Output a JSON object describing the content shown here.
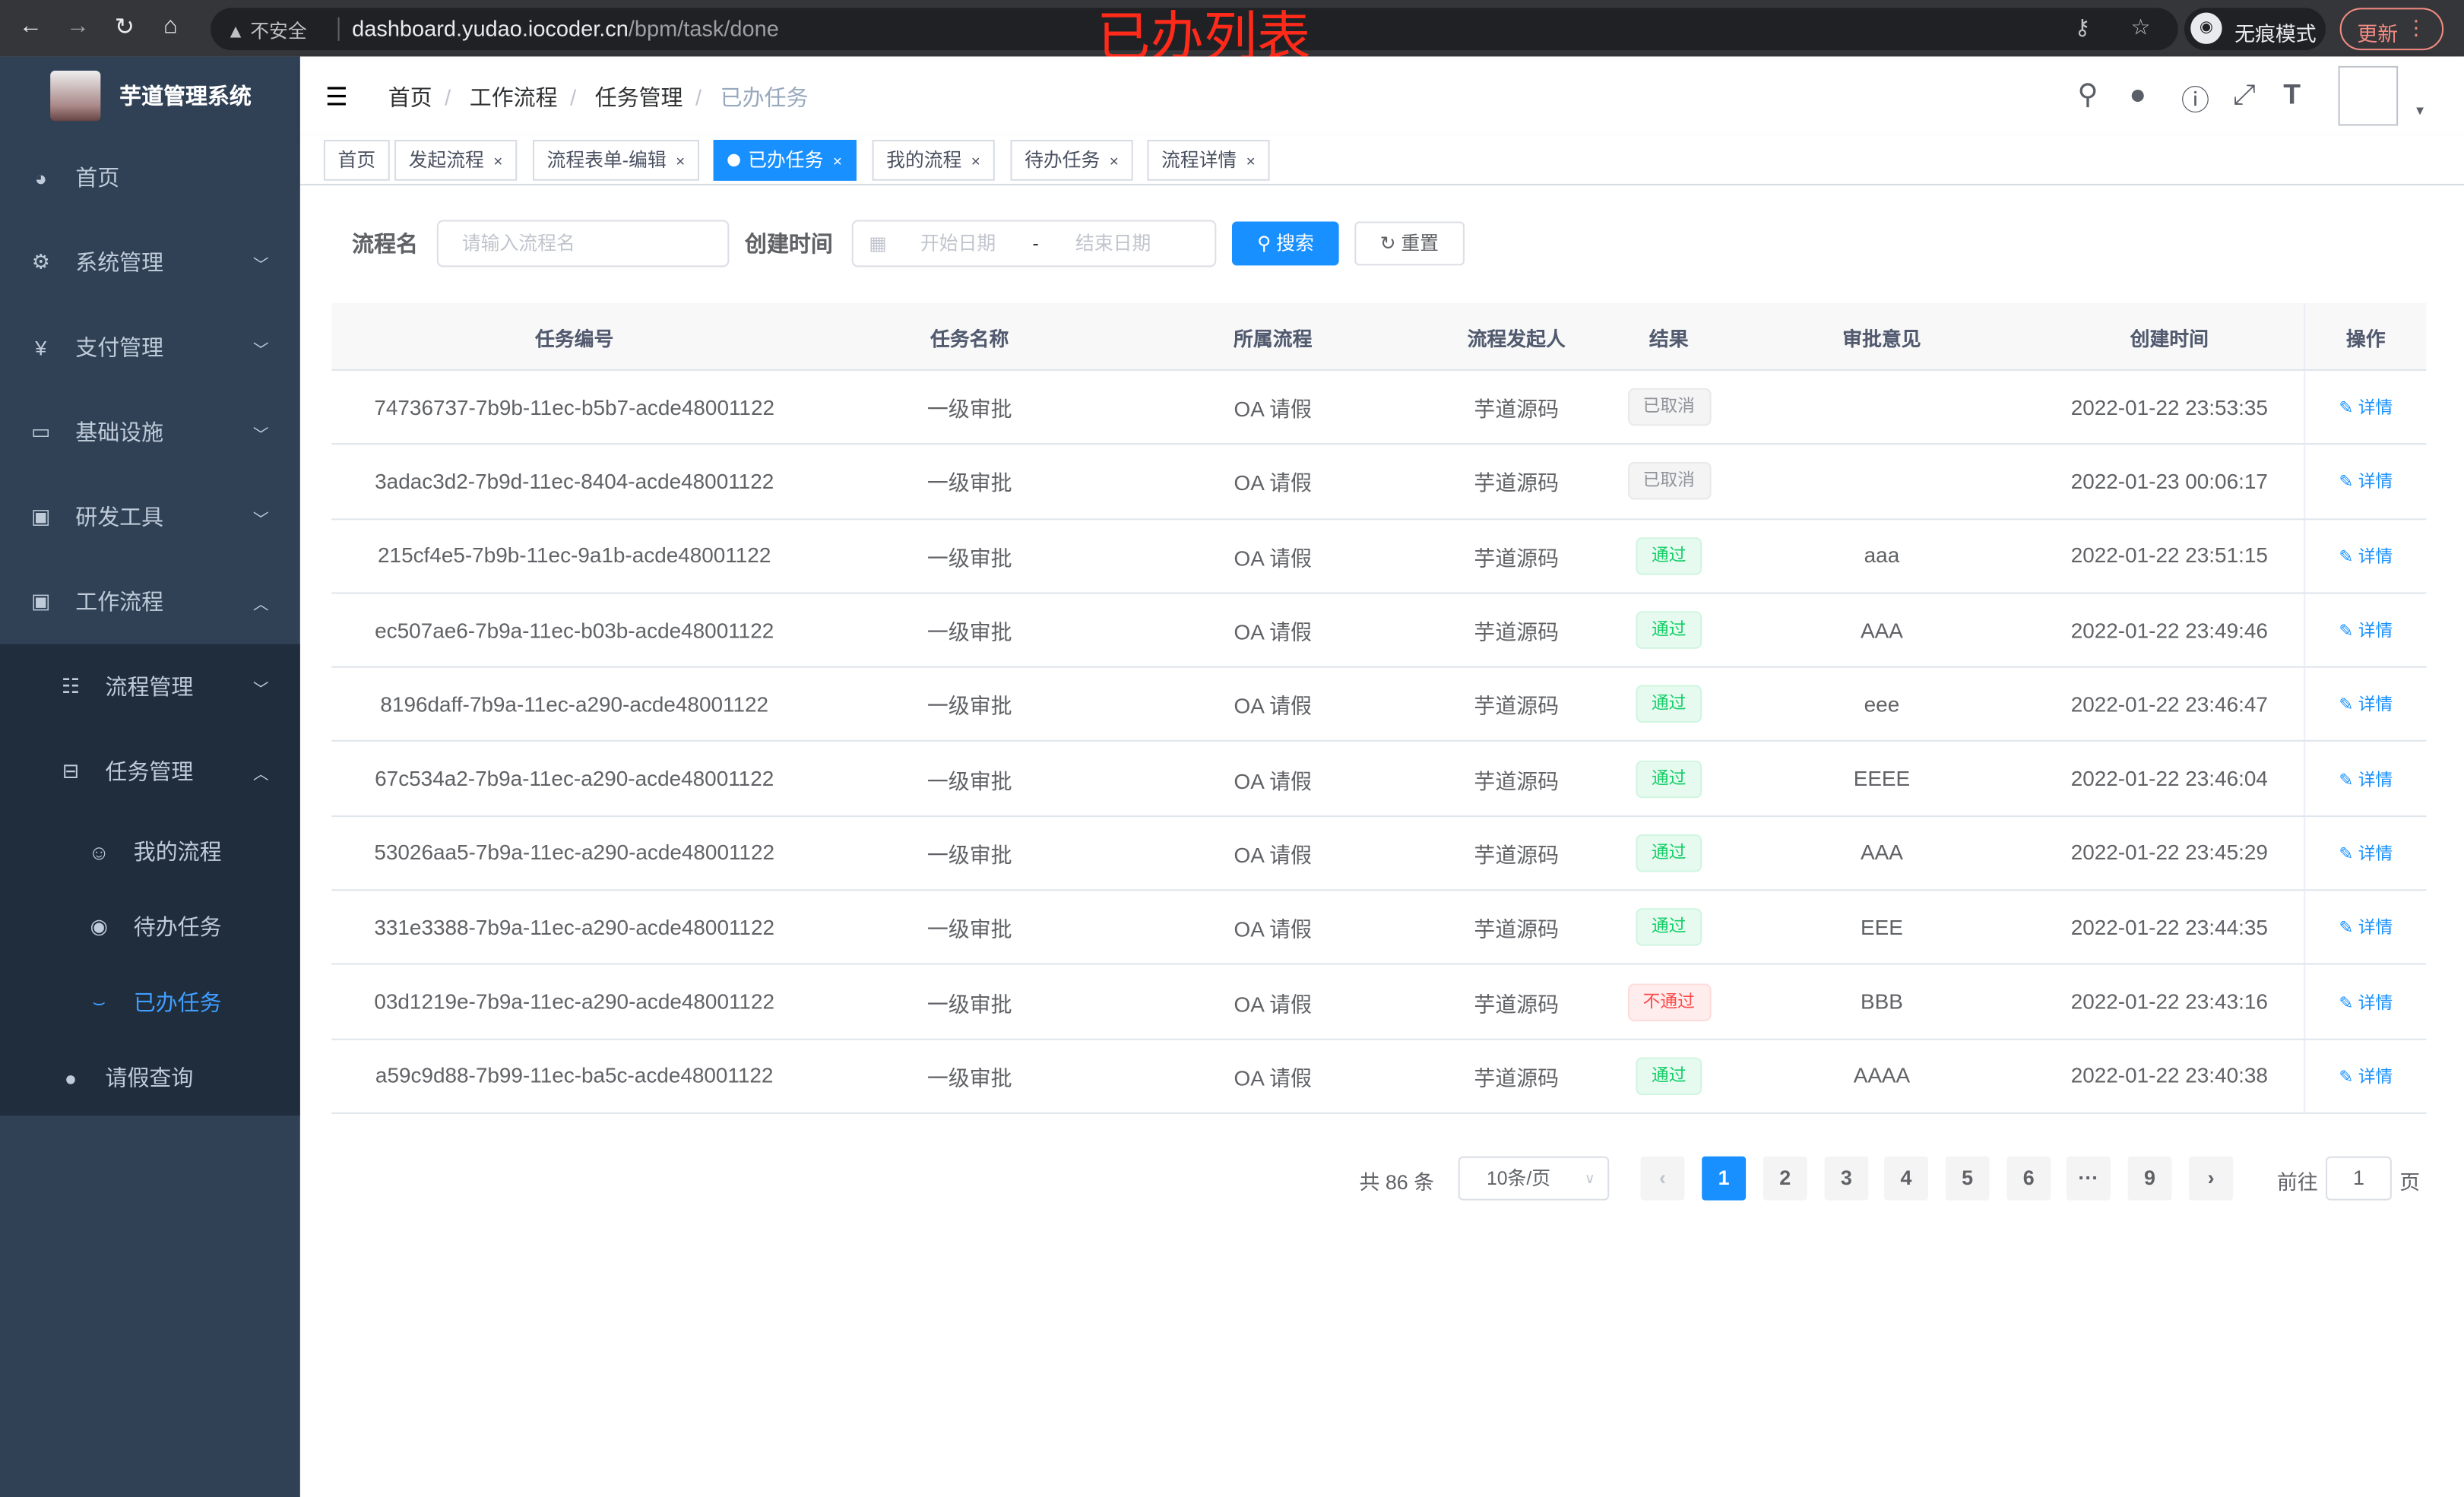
{
  "browser": {
    "insecure": "不安全",
    "url_host": "dashboard.yudao.iocoder.cn",
    "url_path": "/bpm/task/done",
    "incognito": "无痕模式",
    "update": "更新"
  },
  "annotation": "已办列表",
  "sidebar": {
    "title": "芋道管理系统",
    "items": [
      {
        "label": "首页",
        "icon": "dashboard-icon"
      },
      {
        "label": "系统管理",
        "icon": "gear-icon"
      },
      {
        "label": "支付管理",
        "icon": "yen-icon"
      },
      {
        "label": "基础设施",
        "icon": "monitor-icon"
      },
      {
        "label": "研发工具",
        "icon": "toolbox-icon"
      },
      {
        "label": "工作流程",
        "icon": "toolbox-icon"
      }
    ],
    "sub": [
      {
        "label": "流程管理",
        "icon": "list-icon"
      },
      {
        "label": "任务管理",
        "icon": "tree-icon"
      }
    ],
    "sub3": [
      {
        "label": "我的流程",
        "icon": "people-icon"
      },
      {
        "label": "待办任务",
        "icon": "eye-icon"
      },
      {
        "label": "已办任务",
        "icon": "done-icon"
      }
    ],
    "extra": {
      "label": "请假查询",
      "icon": "user-icon"
    }
  },
  "breadcrumb": [
    "首页",
    "工作流程",
    "任务管理",
    "已办任务"
  ],
  "tags": [
    "首页",
    "发起流程",
    "流程表单-编辑",
    "已办任务",
    "我的流程",
    "待办任务",
    "流程详情"
  ],
  "filter": {
    "name_label": "流程名",
    "name_placeholder": "请输入流程名",
    "time_label": "创建时间",
    "start_placeholder": "开始日期",
    "sep": "-",
    "end_placeholder": "结束日期",
    "search": "搜索",
    "reset": "重置"
  },
  "table": {
    "headers": [
      "任务编号",
      "任务名称",
      "所属流程",
      "流程发起人",
      "结果",
      "审批意见",
      "创建时间",
      "操作"
    ],
    "op_label": "详情",
    "rows": [
      [
        "74736737-7b9b-11ec-b5b7-acde48001122",
        "一级审批",
        "OA 请假",
        "芋道源码",
        "已取消",
        "",
        "2022-01-22 23:53:35"
      ],
      [
        "3adac3d2-7b9d-11ec-8404-acde48001122",
        "一级审批",
        "OA 请假",
        "芋道源码",
        "已取消",
        "",
        "2022-01-23 00:06:17"
      ],
      [
        "215cf4e5-7b9b-11ec-9a1b-acde48001122",
        "一级审批",
        "OA 请假",
        "芋道源码",
        "通过",
        "aaa",
        "2022-01-22 23:51:15"
      ],
      [
        "ec507ae6-7b9a-11ec-b03b-acde48001122",
        "一级审批",
        "OA 请假",
        "芋道源码",
        "通过",
        "AAA",
        "2022-01-22 23:49:46"
      ],
      [
        "8196daff-7b9a-11ec-a290-acde48001122",
        "一级审批",
        "OA 请假",
        "芋道源码",
        "通过",
        "eee",
        "2022-01-22 23:46:47"
      ],
      [
        "67c534a2-7b9a-11ec-a290-acde48001122",
        "一级审批",
        "OA 请假",
        "芋道源码",
        "通过",
        "EEEE",
        "2022-01-22 23:46:04"
      ],
      [
        "53026aa5-7b9a-11ec-a290-acde48001122",
        "一级审批",
        "OA 请假",
        "芋道源码",
        "通过",
        "AAA",
        "2022-01-22 23:45:29"
      ],
      [
        "331e3388-7b9a-11ec-a290-acde48001122",
        "一级审批",
        "OA 请假",
        "芋道源码",
        "通过",
        "EEE",
        "2022-01-22 23:44:35"
      ],
      [
        "03d1219e-7b9a-11ec-a290-acde48001122",
        "一级审批",
        "OA 请假",
        "芋道源码",
        "不通过",
        "BBB",
        "2022-01-22 23:43:16"
      ],
      [
        "a59c9d88-7b99-11ec-ba5c-acde48001122",
        "一级审批",
        "OA 请假",
        "芋道源码",
        "通过",
        "AAAA",
        "2022-01-22 23:40:38"
      ]
    ]
  },
  "badge_colors": {
    "已取消": [
      "#f4f4f5",
      "#e9e9eb",
      "#909399"
    ],
    "通过": [
      "#e7faf0",
      "#d0f5e0",
      "#13ce66"
    ],
    "不通过": [
      "#ffeded",
      "#ffdbdb",
      "#ff4949"
    ]
  },
  "pagination": {
    "total": "共 86 条",
    "page_size": "10条/页",
    "pages": [
      "1",
      "2",
      "3",
      "4",
      "5",
      "6",
      "···",
      "9"
    ],
    "current": "1",
    "goto_label": "前往",
    "goto_value": "1",
    "goto_suffix": "页"
  },
  "colors": {
    "accent": "#1890ff",
    "sidebar": "#304156"
  }
}
